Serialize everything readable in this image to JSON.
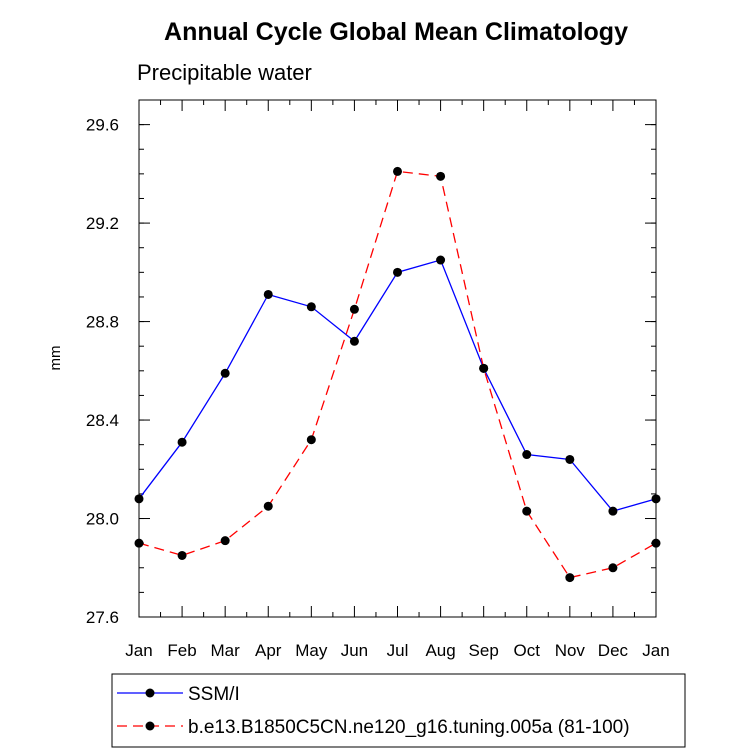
{
  "chart_data": {
    "type": "line",
    "title": "Annual Cycle Global Mean Climatology",
    "subtitle": "Precipitable water",
    "xlabel": "",
    "ylabel": "mm",
    "categories": [
      "Jan",
      "Feb",
      "Mar",
      "Apr",
      "May",
      "Jun",
      "Jul",
      "Aug",
      "Sep",
      "Oct",
      "Nov",
      "Dec",
      "Jan"
    ],
    "ylim": [
      27.6,
      29.7
    ],
    "yticks": [
      "27.6",
      "28.0",
      "28.4",
      "28.8",
      "29.2",
      "29.6"
    ],
    "grid": false,
    "legend_position": "bottom",
    "series": [
      {
        "name": "SSM/I",
        "color": "#0000ff",
        "dash": "solid",
        "values": [
          28.08,
          28.31,
          28.59,
          28.91,
          28.86,
          28.72,
          29.0,
          29.05,
          28.61,
          28.26,
          28.24,
          28.03,
          28.08
        ]
      },
      {
        "name": "b.e13.B1850C5CN.ne120_g16.tuning.005a (81-100)",
        "color": "#ff0000",
        "dash": "dashed",
        "values": [
          27.9,
          27.85,
          27.91,
          28.05,
          28.32,
          28.85,
          29.41,
          29.39,
          28.61,
          28.03,
          27.76,
          27.8,
          27.9
        ]
      }
    ]
  }
}
